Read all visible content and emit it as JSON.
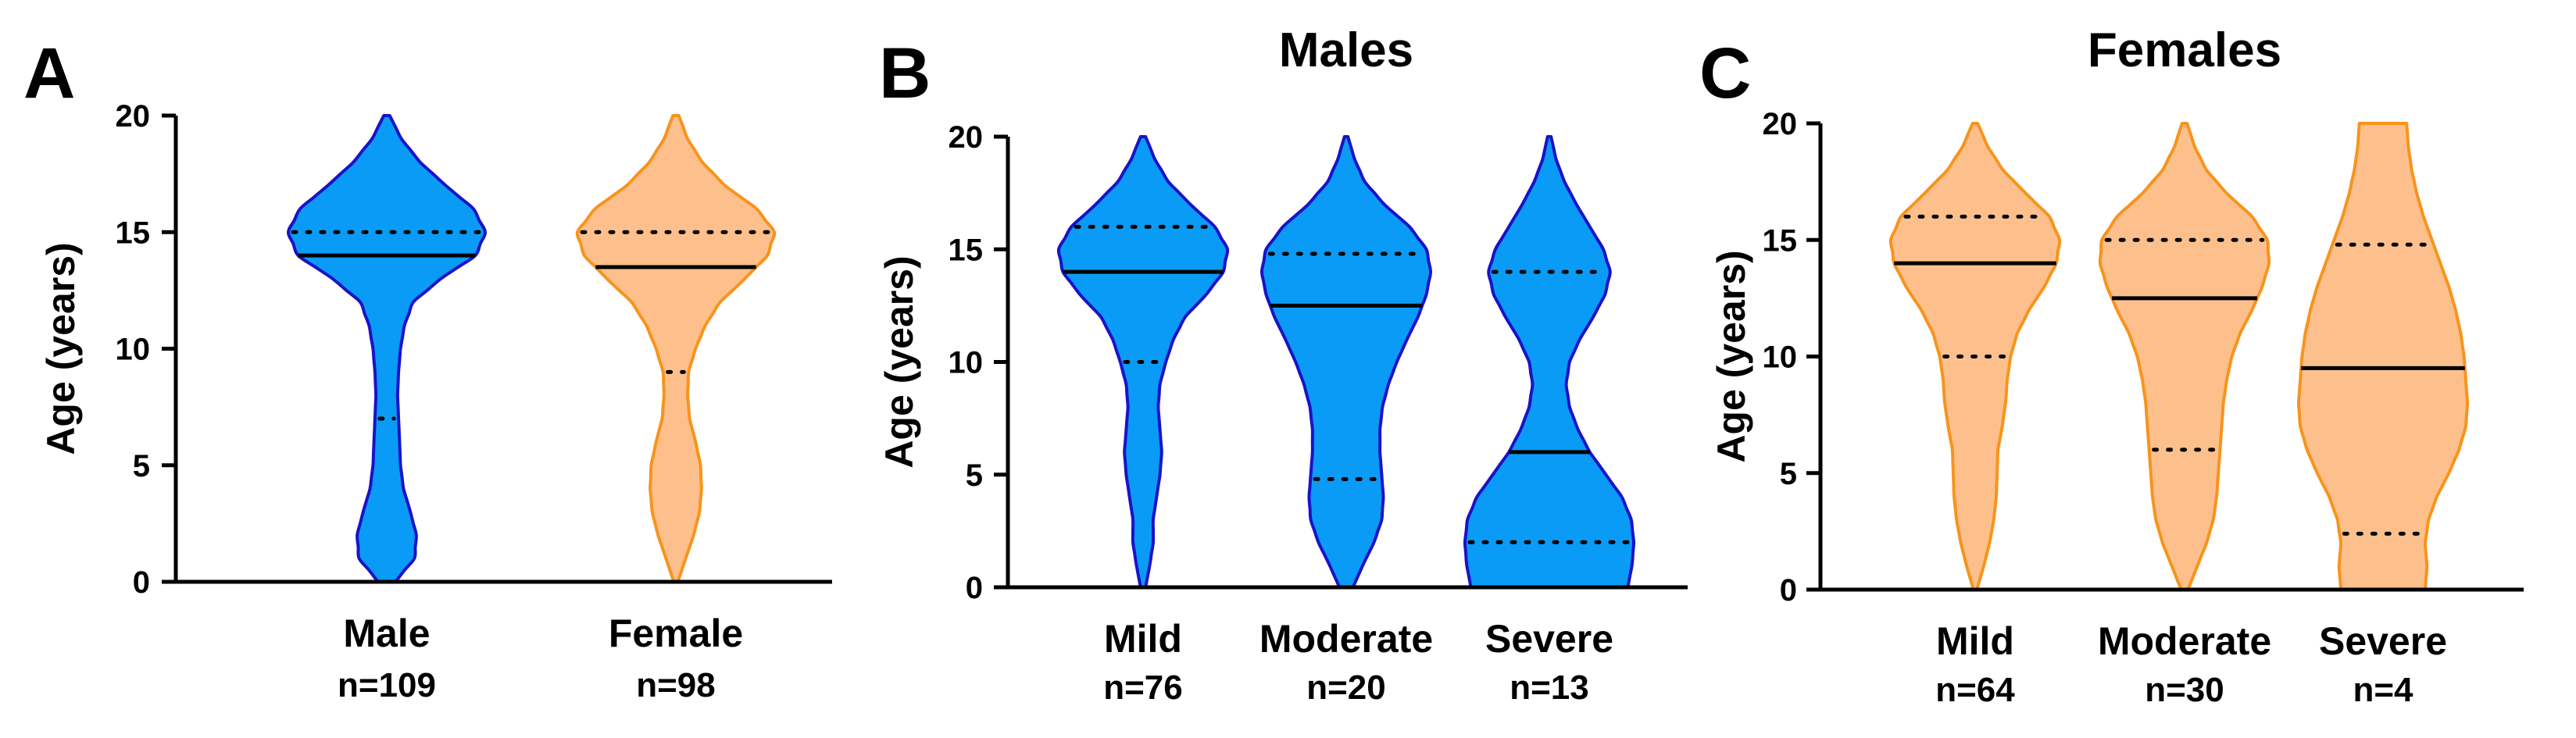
{
  "colors": {
    "male_fill": "#0A9BF6",
    "male_stroke": "#1A12C8",
    "female_fill": "#FDC08C",
    "female_stroke": "#F7941D",
    "axis": "#000000"
  },
  "chart_data": [
    {
      "panel": "A",
      "type": "violin",
      "title": "",
      "ylabel": "Age (years)",
      "ylim": [
        0,
        20
      ],
      "yticks": [
        0,
        5,
        10,
        15,
        20
      ],
      "categories": [
        {
          "label": "Male",
          "n_label": "n=109",
          "color": "male",
          "median": 14,
          "q1": 7,
          "q3": 15,
          "density": [
            [
              0,
              0.09
            ],
            [
              0.5,
              0.18
            ],
            [
              1,
              0.28
            ],
            [
              2,
              0.3
            ],
            [
              3,
              0.24
            ],
            [
              4,
              0.17
            ],
            [
              5,
              0.14
            ],
            [
              6,
              0.13
            ],
            [
              7,
              0.12
            ],
            [
              8,
              0.11
            ],
            [
              9,
              0.12
            ],
            [
              10,
              0.14
            ],
            [
              11,
              0.18
            ],
            [
              12,
              0.27
            ],
            [
              13,
              0.55
            ],
            [
              14,
              0.9
            ],
            [
              15,
              1.0
            ],
            [
              16,
              0.88
            ],
            [
              17,
              0.6
            ],
            [
              18,
              0.34
            ],
            [
              19,
              0.15
            ],
            [
              20,
              0.03
            ]
          ]
        },
        {
          "label": "Female",
          "n_label": "n=98",
          "color": "female",
          "median": 13.5,
          "q1": 9,
          "q3": 15,
          "density": [
            [
              0,
              0.02
            ],
            [
              1,
              0.1
            ],
            [
              2,
              0.18
            ],
            [
              3,
              0.24
            ],
            [
              4,
              0.26
            ],
            [
              5,
              0.25
            ],
            [
              6,
              0.2
            ],
            [
              7,
              0.14
            ],
            [
              8,
              0.12
            ],
            [
              9,
              0.13
            ],
            [
              10,
              0.2
            ],
            [
              11,
              0.3
            ],
            [
              12,
              0.45
            ],
            [
              13,
              0.7
            ],
            [
              14,
              0.93
            ],
            [
              15,
              1.0
            ],
            [
              16,
              0.82
            ],
            [
              17,
              0.5
            ],
            [
              18,
              0.27
            ],
            [
              19,
              0.12
            ],
            [
              20,
              0.03
            ]
          ]
        }
      ]
    },
    {
      "panel": "B",
      "type": "violin",
      "title": "Males",
      "ylabel": "Age (years)",
      "ylim": [
        0,
        20
      ],
      "yticks": [
        0,
        5,
        10,
        15,
        20
      ],
      "categories": [
        {
          "label": "Mild",
          "n_label": "n=76",
          "color": "male",
          "median": 14,
          "q1": 10,
          "q3": 16,
          "density": [
            [
              0,
              0.03
            ],
            [
              1,
              0.08
            ],
            [
              2,
              0.12
            ],
            [
              3,
              0.12
            ],
            [
              4,
              0.16
            ],
            [
              5,
              0.2
            ],
            [
              6,
              0.22
            ],
            [
              7,
              0.2
            ],
            [
              8,
              0.18
            ],
            [
              9,
              0.2
            ],
            [
              10,
              0.27
            ],
            [
              11,
              0.36
            ],
            [
              12,
              0.5
            ],
            [
              13,
              0.75
            ],
            [
              14,
              0.95
            ],
            [
              15,
              1.0
            ],
            [
              16,
              0.85
            ],
            [
              17,
              0.56
            ],
            [
              18,
              0.3
            ],
            [
              19,
              0.14
            ],
            [
              20,
              0.03
            ]
          ]
        },
        {
          "label": "Moderate",
          "n_label": "n=20",
          "color": "male",
          "median": 12.5,
          "q1": 4.8,
          "q3": 14.8,
          "density": [
            [
              0,
              0.08
            ],
            [
              1,
              0.2
            ],
            [
              2,
              0.33
            ],
            [
              3,
              0.42
            ],
            [
              4,
              0.44
            ],
            [
              5,
              0.42
            ],
            [
              6,
              0.4
            ],
            [
              7,
              0.4
            ],
            [
              8,
              0.43
            ],
            [
              9,
              0.5
            ],
            [
              10,
              0.6
            ],
            [
              11,
              0.72
            ],
            [
              12,
              0.85
            ],
            [
              13,
              0.95
            ],
            [
              14,
              1.0
            ],
            [
              15,
              0.95
            ],
            [
              16,
              0.75
            ],
            [
              17,
              0.45
            ],
            [
              18,
              0.22
            ],
            [
              19,
              0.1
            ],
            [
              20,
              0.02
            ]
          ]
        },
        {
          "label": "Severe",
          "n_label": "n=13",
          "color": "male",
          "median": 6,
          "q1": 2,
          "q3": 14,
          "density": [
            [
              0,
              0.93
            ],
            [
              1,
              0.98
            ],
            [
              2,
              1.0
            ],
            [
              3,
              0.97
            ],
            [
              4,
              0.86
            ],
            [
              5,
              0.67
            ],
            [
              6,
              0.48
            ],
            [
              7,
              0.34
            ],
            [
              8,
              0.24
            ],
            [
              9,
              0.2
            ],
            [
              10,
              0.24
            ],
            [
              11,
              0.36
            ],
            [
              12,
              0.52
            ],
            [
              13,
              0.66
            ],
            [
              14,
              0.72
            ],
            [
              15,
              0.64
            ],
            [
              16,
              0.48
            ],
            [
              17,
              0.32
            ],
            [
              18,
              0.18
            ],
            [
              19,
              0.08
            ],
            [
              20,
              0.02
            ]
          ]
        }
      ]
    },
    {
      "panel": "C",
      "type": "violin",
      "title": "Females",
      "ylabel": "Age (years)",
      "ylim": [
        0,
        20
      ],
      "yticks": [
        0,
        5,
        10,
        15,
        20
      ],
      "categories": [
        {
          "label": "Mild",
          "n_label": "n=64",
          "color": "female",
          "median": 14,
          "q1": 10,
          "q3": 16,
          "density": [
            [
              0,
              0.02
            ],
            [
              1,
              0.1
            ],
            [
              2,
              0.17
            ],
            [
              3,
              0.22
            ],
            [
              4,
              0.25
            ],
            [
              5,
              0.26
            ],
            [
              6,
              0.27
            ],
            [
              7,
              0.32
            ],
            [
              8,
              0.36
            ],
            [
              9,
              0.38
            ],
            [
              10,
              0.42
            ],
            [
              11,
              0.5
            ],
            [
              12,
              0.64
            ],
            [
              13,
              0.82
            ],
            [
              14,
              0.96
            ],
            [
              15,
              1.0
            ],
            [
              16,
              0.88
            ],
            [
              17,
              0.6
            ],
            [
              18,
              0.33
            ],
            [
              19,
              0.15
            ],
            [
              20,
              0.03
            ]
          ]
        },
        {
          "label": "Moderate",
          "n_label": "n=30",
          "color": "female",
          "median": 12.5,
          "q1": 6,
          "q3": 15,
          "density": [
            [
              0,
              0.04
            ],
            [
              1,
              0.15
            ],
            [
              2,
              0.26
            ],
            [
              3,
              0.34
            ],
            [
              4,
              0.38
            ],
            [
              5,
              0.4
            ],
            [
              6,
              0.42
            ],
            [
              7,
              0.44
            ],
            [
              8,
              0.46
            ],
            [
              9,
              0.5
            ],
            [
              10,
              0.56
            ],
            [
              11,
              0.66
            ],
            [
              12,
              0.8
            ],
            [
              13,
              0.92
            ],
            [
              14,
              1.0
            ],
            [
              15,
              0.98
            ],
            [
              16,
              0.8
            ],
            [
              17,
              0.5
            ],
            [
              18,
              0.26
            ],
            [
              19,
              0.12
            ],
            [
              20,
              0.03
            ]
          ]
        },
        {
          "label": "Severe",
          "n_label": "n=4",
          "color": "female",
          "median": 9.5,
          "q1": 2.4,
          "q3": 14.8,
          "density": [
            [
              0,
              0.5
            ],
            [
              1,
              0.52
            ],
            [
              2,
              0.5
            ],
            [
              3,
              0.54
            ],
            [
              4,
              0.64
            ],
            [
              5,
              0.78
            ],
            [
              6,
              0.9
            ],
            [
              7,
              0.98
            ],
            [
              8,
              1.0
            ],
            [
              9,
              0.98
            ],
            [
              10,
              0.96
            ],
            [
              11,
              0.92
            ],
            [
              12,
              0.86
            ],
            [
              13,
              0.78
            ],
            [
              14,
              0.68
            ],
            [
              15,
              0.58
            ],
            [
              16,
              0.48
            ],
            [
              17,
              0.4
            ],
            [
              18,
              0.34
            ],
            [
              19,
              0.3
            ],
            [
              20,
              0.28
            ]
          ]
        }
      ]
    }
  ]
}
